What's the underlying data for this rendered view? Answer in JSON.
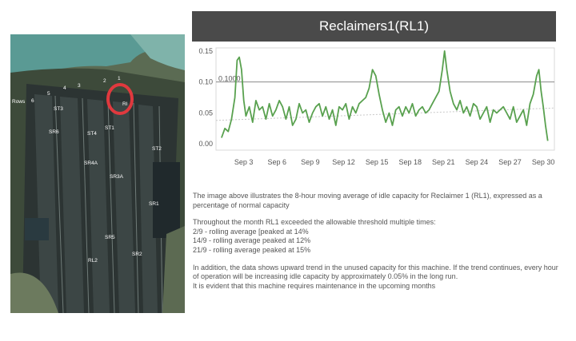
{
  "title": "Reclaimers1(RL1)",
  "aerial_labels": {
    "rows": "Rows",
    "row_numbers": [
      "6",
      "5",
      "4",
      "3",
      "2",
      "1"
    ],
    "ST3": "ST3",
    "RL1": "Rl",
    "SR6": "SR6",
    "ST1": "ST1",
    "ST4": "ST4",
    "ST2": "ST2",
    "SR4A": "SR4A",
    "SR3A": "SR3A",
    "SR1": "SR1",
    "SR5": "SR5",
    "SR2": "SR2",
    "RL2": "RL2"
  },
  "colors": {
    "line": "#59a14f",
    "title_bg": "#4a4a4a",
    "highlight": "#e0393e"
  },
  "chart_data": {
    "type": "line",
    "title": "",
    "x_ticks": [
      "Sep 3",
      "Sep 6",
      "Sep 9",
      "Sep 12",
      "Sep 15",
      "Sep 18",
      "Sep 21",
      "Sep 24",
      "Sep 27",
      "Sep 30"
    ],
    "x_tick_days": [
      3,
      6,
      9,
      12,
      15,
      18,
      21,
      24,
      27,
      30
    ],
    "xlim": [
      0.5,
      31
    ],
    "y_ticks": [
      "0.15",
      "0.10",
      "0.05",
      "0.00"
    ],
    "y_tick_values": [
      0.15,
      0.1,
      0.05,
      0.0
    ],
    "ylim": [
      -0.01,
      0.155
    ],
    "reference_line": {
      "value": 0.1,
      "label": "0.1000"
    },
    "series": [
      {
        "x": [
          1.0,
          1.3,
          1.6,
          1.9,
          2.2,
          2.4,
          2.6,
          2.8,
          3.0,
          3.2,
          3.5,
          3.8,
          4.1,
          4.4,
          4.7,
          5.0,
          5.3,
          5.6,
          5.9,
          6.2,
          6.5,
          6.8,
          7.1,
          7.4,
          7.7,
          8.0,
          8.3,
          8.6,
          8.9,
          9.2,
          9.5,
          9.8,
          10.1,
          10.4,
          10.7,
          11.0,
          11.3,
          11.6,
          11.9,
          12.2,
          12.5,
          12.8,
          13.1,
          13.4,
          13.7,
          14.0,
          14.3,
          14.6,
          14.9,
          15.2,
          15.5,
          15.8,
          16.1,
          16.4,
          16.7,
          17.0,
          17.3,
          17.6,
          17.9,
          18.2,
          18.5,
          18.8,
          19.1,
          19.4,
          19.7,
          20.0,
          20.3,
          20.6,
          20.9,
          21.1,
          21.3,
          21.6,
          21.9,
          22.2,
          22.5,
          22.8,
          23.1,
          23.4,
          23.7,
          24.0,
          24.3,
          24.6,
          24.9,
          25.2,
          25.5,
          25.8,
          26.1,
          26.4,
          26.7,
          27.0,
          27.3,
          27.6,
          27.9,
          28.2,
          28.5,
          28.8,
          29.1,
          29.4,
          29.6,
          29.8,
          30.0,
          30.2,
          30.4
        ],
        "y": [
          0.01,
          0.025,
          0.02,
          0.04,
          0.075,
          0.135,
          0.14,
          0.12,
          0.07,
          0.045,
          0.06,
          0.035,
          0.07,
          0.055,
          0.06,
          0.04,
          0.065,
          0.045,
          0.055,
          0.07,
          0.06,
          0.04,
          0.06,
          0.03,
          0.04,
          0.065,
          0.05,
          0.055,
          0.035,
          0.05,
          0.06,
          0.065,
          0.045,
          0.06,
          0.04,
          0.055,
          0.03,
          0.06,
          0.055,
          0.065,
          0.04,
          0.06,
          0.05,
          0.065,
          0.07,
          0.075,
          0.09,
          0.12,
          0.11,
          0.08,
          0.055,
          0.035,
          0.05,
          0.03,
          0.055,
          0.06,
          0.045,
          0.06,
          0.05,
          0.065,
          0.045,
          0.055,
          0.06,
          0.05,
          0.055,
          0.065,
          0.075,
          0.085,
          0.12,
          0.15,
          0.12,
          0.085,
          0.065,
          0.055,
          0.07,
          0.05,
          0.06,
          0.045,
          0.065,
          0.06,
          0.04,
          0.05,
          0.06,
          0.035,
          0.055,
          0.05,
          0.055,
          0.06,
          0.05,
          0.04,
          0.06,
          0.035,
          0.045,
          0.055,
          0.03,
          0.065,
          0.08,
          0.11,
          0.12,
          0.085,
          0.06,
          0.03,
          0.005
        ]
      }
    ]
  },
  "text": {
    "para1": "The image above illustrates the 8-hour moving average of idle capacity for Reclaimer 1 (RL1), expressed as a percentage of normal capacity",
    "intro": "Throughout the month RL1 exceeded the allowable threshold multiple times:",
    "bullet1": "2/9 - rolling average [peaked at 14%",
    "bullet2": "14/9 - rolling average peaked at 12%",
    "bullet3": "21/9 - rolling average peaked at 15%",
    "para3": "In addition, the data shows upward trend in the unused capacity for this machine. If the trend continues, every hour of operation will be increasing idle capacity by approximately 0.05% in the long run.",
    "para4": "It is evident that this machine requires maintenance in the upcoming months"
  }
}
